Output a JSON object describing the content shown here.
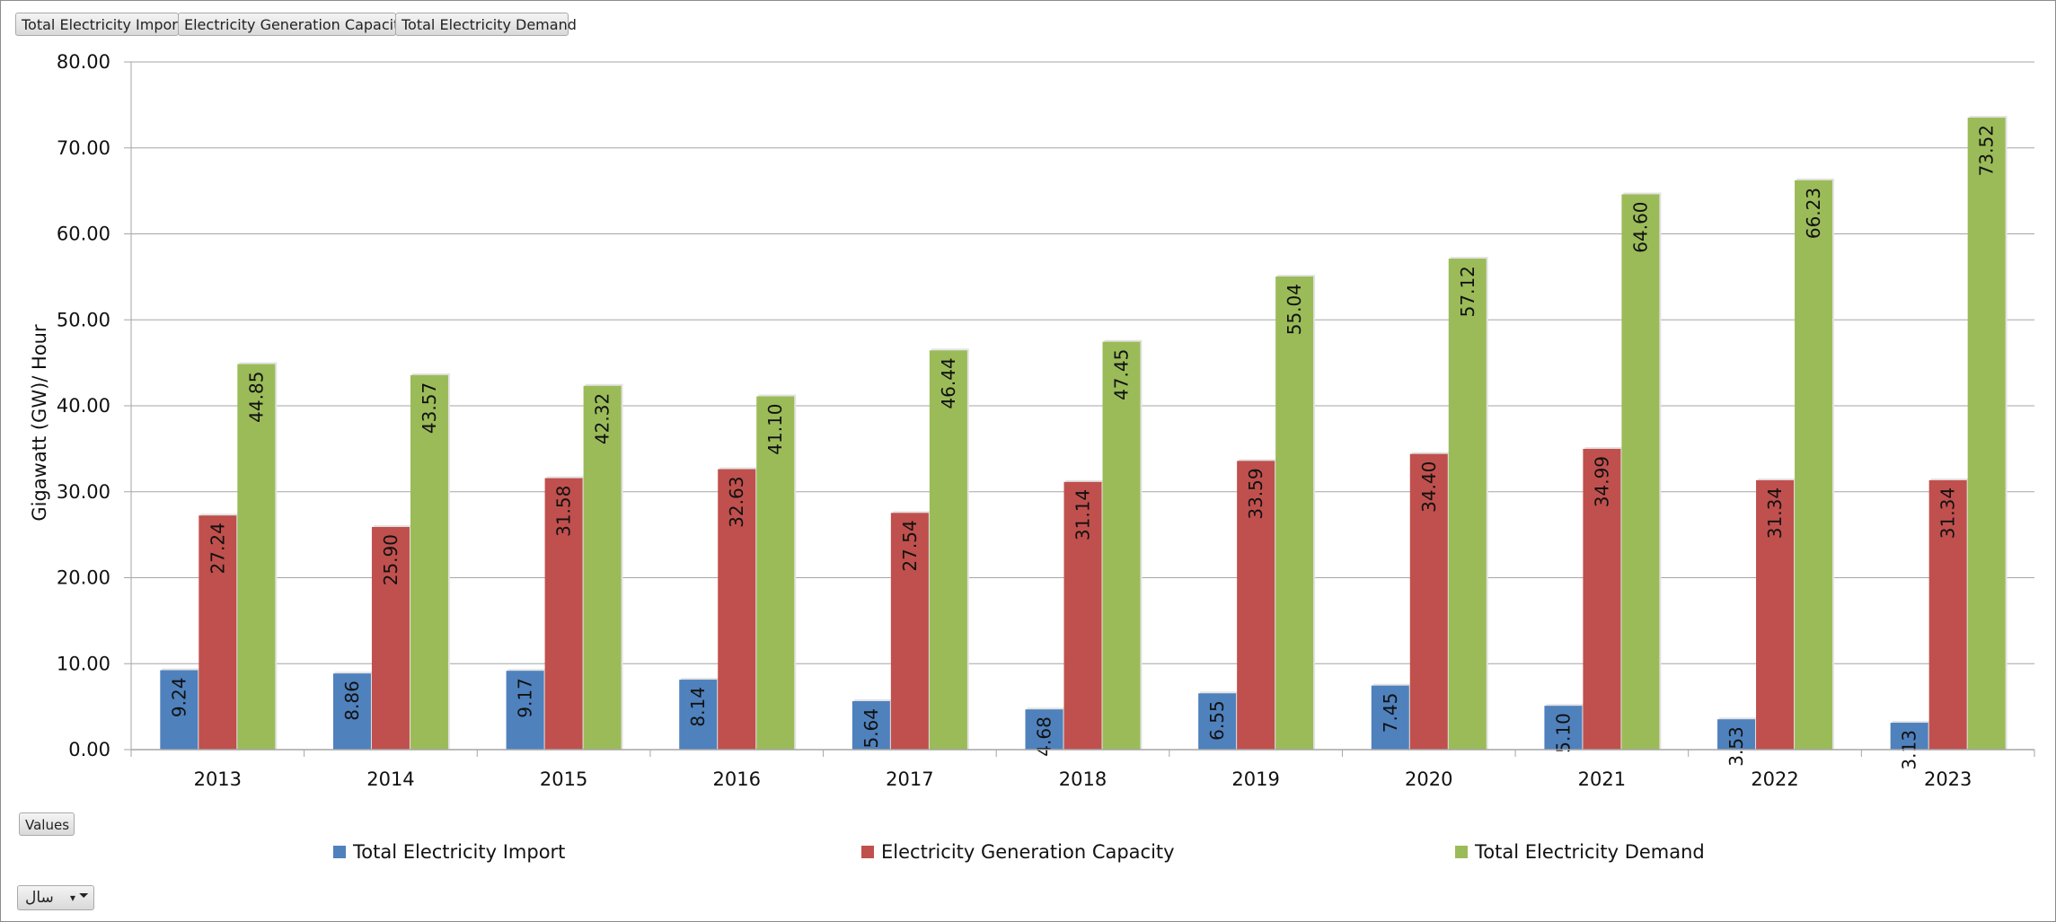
{
  "field_buttons": {
    "import": "Total Electricity Import",
    "capacity": "Electricity Generation Capacity",
    "demand": "Total Electricity Demand",
    "values": "Values"
  },
  "filter": {
    "label": "سال",
    "arrow": "▾",
    "funnel": "⏷"
  },
  "colors": {
    "import": "#4f81bd",
    "capacity": "#c0504d",
    "demand": "#9bbb59"
  },
  "chart_data": {
    "type": "bar",
    "ylabel": "Gigawatt (GW)/ Hour",
    "ylim": [
      0,
      80
    ],
    "yticks": [
      "0.00",
      "10.00",
      "20.00",
      "30.00",
      "40.00",
      "50.00",
      "60.00",
      "70.00",
      "80.00"
    ],
    "categories": [
      "2013",
      "2014",
      "2015",
      "2016",
      "2017",
      "2018",
      "2019",
      "2020",
      "2021",
      "2022",
      "2023"
    ],
    "legend_position": "bottom",
    "grid": true,
    "series": [
      {
        "name": "Total Electricity Import",
        "values": [
          9.24,
          8.86,
          9.17,
          8.14,
          5.64,
          4.68,
          6.55,
          7.45,
          5.1,
          3.53,
          3.13
        ]
      },
      {
        "name": "Electricity Generation Capacity",
        "values": [
          27.24,
          25.9,
          31.58,
          32.63,
          27.54,
          31.14,
          33.59,
          34.4,
          34.99,
          31.34,
          31.34
        ]
      },
      {
        "name": "Total Electricity Demand",
        "values": [
          44.85,
          43.57,
          42.32,
          41.1,
          46.44,
          47.45,
          55.04,
          57.12,
          64.6,
          66.23,
          73.52
        ]
      }
    ]
  }
}
